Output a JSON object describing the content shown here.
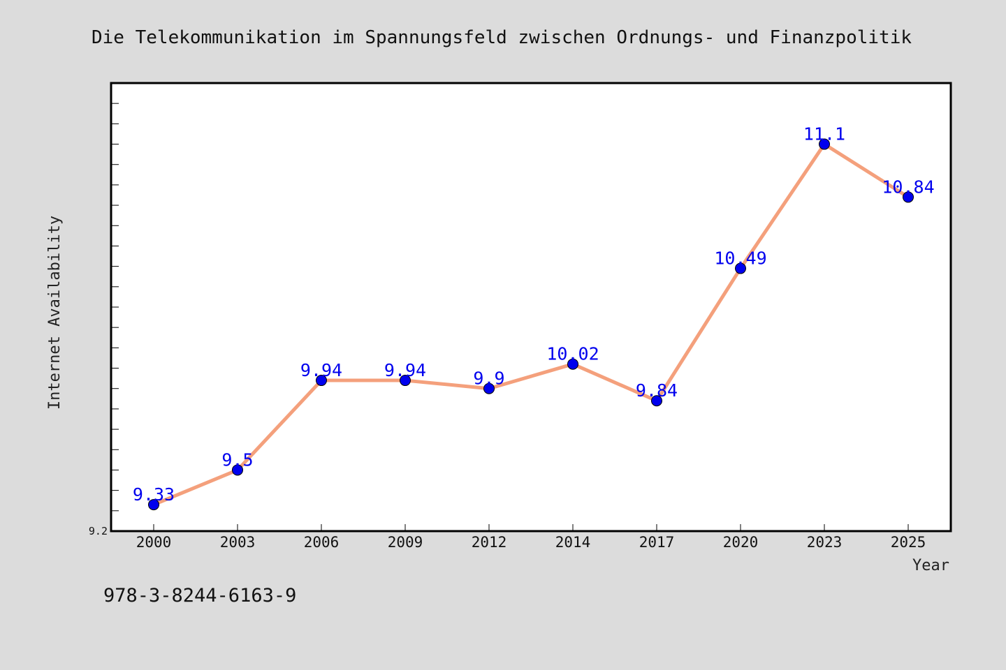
{
  "chart_data": {
    "type": "line",
    "title": "Die Telekommunikation im Spannungsfeld zwischen Ordnungs- und Finanzpolitik",
    "xlabel": "Year",
    "ylabel": "Internet Availability",
    "categories": [
      "2000",
      "2003",
      "2006",
      "2009",
      "2012",
      "2014",
      "2017",
      "2020",
      "2023",
      "2025"
    ],
    "series": [
      {
        "values": [
          9.33,
          9.5,
          9.94,
          9.94,
          9.9,
          10.02,
          9.84,
          10.49,
          11.1,
          10.84
        ],
        "labels": [
          "9.33",
          "9.5",
          "9.94",
          "9.94",
          "9.9",
          "10.02",
          "9.84",
          "10.49",
          "11.1",
          "10.84"
        ]
      }
    ],
    "ylim": [
      9.2,
      11.4
    ],
    "y_tick_labels": [
      "9.2"
    ],
    "grid": false,
    "colors": {
      "line": "#f4a07c",
      "marker": "#0000ee",
      "label": "#0000ee",
      "background": "#dcdcdc",
      "plot_background": "#ffffff"
    }
  },
  "footer": {
    "isbn": "978-3-8244-6163-9"
  }
}
